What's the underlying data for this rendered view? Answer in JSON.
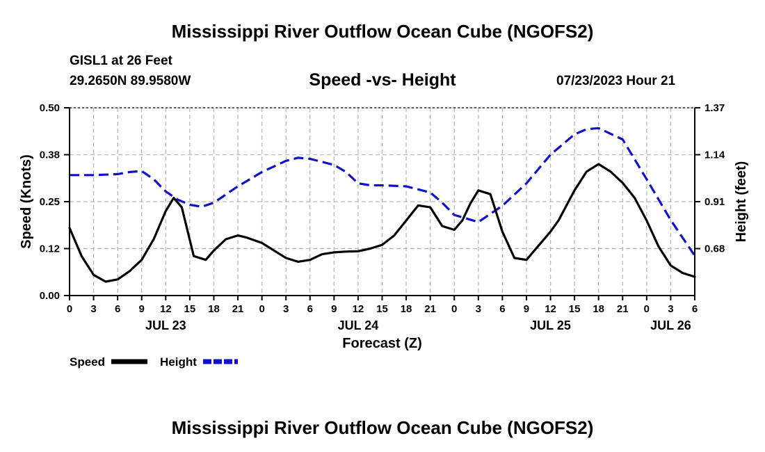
{
  "header": {
    "title": "Mississippi River Outflow Ocean Cube (NGOFS2)",
    "station": "GISL1 at 26 Feet",
    "coords": "29.2650N  89.9580W",
    "subtitle": "Speed -vs- Height",
    "datetime": "07/23/2023 Hour 21"
  },
  "footer": {
    "title": "Mississippi River Outflow Ocean Cube (NGOFS2)"
  },
  "chart_data": {
    "type": "line",
    "title": "Speed -vs- Height",
    "xlabel": "Forecast (Z)",
    "ylabel_left": "Speed (Knots)",
    "ylabel_right": "Height (feet)",
    "x_range_hours": [
      0,
      78
    ],
    "x_tick_step_hours": 3,
    "x_tick_labels": [
      "0",
      "3",
      "6",
      "9",
      "12",
      "15",
      "18",
      "21",
      "0",
      "3",
      "6",
      "9",
      "12",
      "15",
      "18",
      "21",
      "0",
      "3",
      "6",
      "9",
      "12",
      "15",
      "18",
      "21",
      "0",
      "3",
      "6"
    ],
    "date_labels": [
      {
        "label": "JUL 23",
        "hour": 12
      },
      {
        "label": "JUL 24",
        "hour": 36
      },
      {
        "label": "JUL 25",
        "hour": 60
      },
      {
        "label": "JUL 26",
        "hour": 75
      }
    ],
    "y_left": {
      "range": [
        0,
        0.5
      ],
      "ticks": [
        0,
        0.125,
        0.25,
        0.375,
        0.5
      ],
      "tick_labels": [
        "0.00",
        "0.12",
        "0.25",
        "0.38",
        "0.50"
      ]
    },
    "y_right": {
      "range": [
        0.45,
        1.37
      ],
      "ticks": [
        0.68,
        0.91,
        1.14,
        1.37
      ],
      "tick_labels": [
        "0.68",
        "0.91",
        "1.14",
        "1.37"
      ]
    },
    "grid": true,
    "legend": [
      {
        "name": "Speed",
        "color": "#000000",
        "style": "solid"
      },
      {
        "name": "Height",
        "color": "#1010c8",
        "style": "dashed"
      }
    ],
    "series": [
      {
        "name": "Speed",
        "axis": "left",
        "color": "#000000",
        "x": [
          0,
          1.5,
          3,
          4.5,
          6,
          7.5,
          9,
          10.5,
          12,
          13,
          14,
          15.5,
          17,
          18,
          19.5,
          21,
          22,
          24,
          25.5,
          27,
          28.5,
          30,
          31.5,
          33,
          34.5,
          36,
          37.5,
          39,
          40.5,
          42,
          43.5,
          45,
          46.5,
          48,
          49,
          50,
          51,
          52.5,
          54,
          55.5,
          57,
          58,
          59,
          60,
          61,
          62,
          63,
          64.5,
          66,
          67.5,
          69,
          70.5,
          72,
          73.5,
          75,
          76.5,
          78
        ],
        "values": [
          0.18,
          0.105,
          0.055,
          0.037,
          0.043,
          0.065,
          0.095,
          0.15,
          0.225,
          0.26,
          0.235,
          0.105,
          0.095,
          0.12,
          0.15,
          0.16,
          0.155,
          0.14,
          0.12,
          0.1,
          0.09,
          0.095,
          0.11,
          0.115,
          0.117,
          0.118,
          0.125,
          0.135,
          0.16,
          0.2,
          0.24,
          0.235,
          0.185,
          0.175,
          0.2,
          0.245,
          0.28,
          0.27,
          0.17,
          0.1,
          0.095,
          0.12,
          0.145,
          0.17,
          0.2,
          0.24,
          0.28,
          0.33,
          0.35,
          0.33,
          0.3,
          0.26,
          0.2,
          0.13,
          0.08,
          0.06,
          0.05
        ]
      },
      {
        "name": "Height",
        "axis": "right",
        "color": "#1010c8",
        "x": [
          0,
          3,
          6,
          7.5,
          9,
          10.5,
          12,
          13.5,
          15,
          16.5,
          18,
          21,
          24,
          27,
          28.5,
          30,
          33,
          34.5,
          36,
          37.5,
          39,
          42,
          45,
          46.5,
          48,
          51,
          54,
          57,
          60,
          63,
          64.5,
          66,
          69,
          72,
          75,
          78
        ],
        "values": [
          1.04,
          1.04,
          1.045,
          1.055,
          1.06,
          1.02,
          0.96,
          0.92,
          0.895,
          0.885,
          0.905,
          0.985,
          1.055,
          1.11,
          1.125,
          1.12,
          1.09,
          1.055,
          1.0,
          0.99,
          0.99,
          0.985,
          0.955,
          0.905,
          0.845,
          0.81,
          0.89,
          1.0,
          1.14,
          1.24,
          1.265,
          1.27,
          1.215,
          1.02,
          0.82,
          0.645
        ]
      }
    ]
  }
}
